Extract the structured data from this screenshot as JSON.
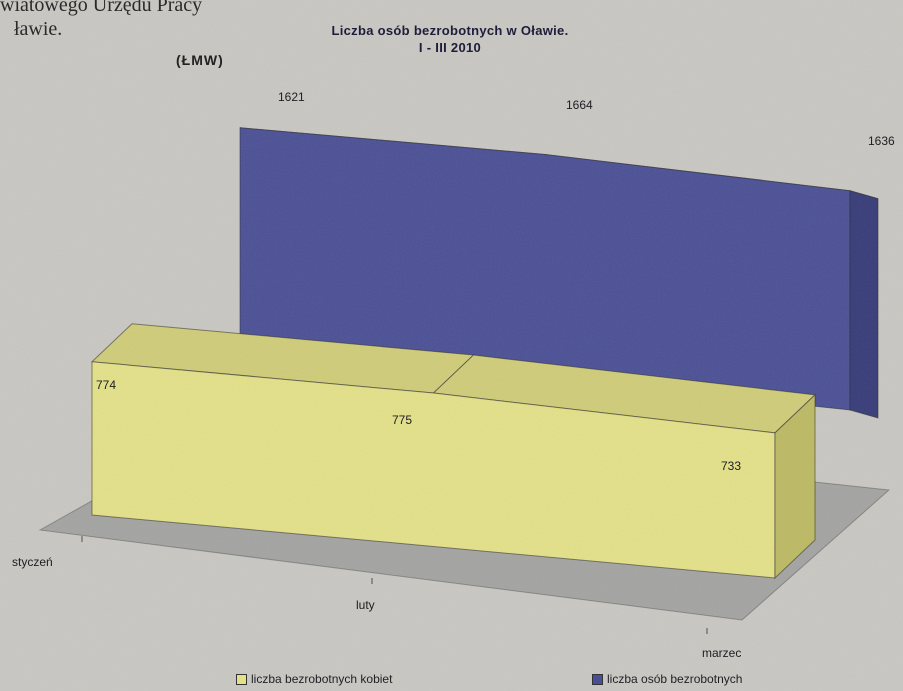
{
  "page": {
    "fragment_line1": "wiatowego Urzędu Pracy",
    "fragment_line2": "ławie.",
    "subtitle": "(ŁMW)"
  },
  "colors": {
    "background": "#c9c7c2",
    "blue_series": "#4a4f95",
    "yellow_series": "#e3e188",
    "floor": "#a3a3a1"
  },
  "chart_data": {
    "type": "bar",
    "title": "Liczba osób bezrobotnych w Oławie.",
    "title_line2": "I - III 2010",
    "categories": [
      "styczeń",
      "luty",
      "marzec"
    ],
    "series": [
      {
        "name": "liczba bezrobotnych kobiet",
        "values": [
          774,
          775,
          733
        ],
        "color": "#e3e188"
      },
      {
        "name": "liczba osób bezrobotnych",
        "values": [
          1621,
          1664,
          1636
        ],
        "color": "#4a4f95"
      }
    ],
    "legend_position": "bottom",
    "grid": false
  }
}
